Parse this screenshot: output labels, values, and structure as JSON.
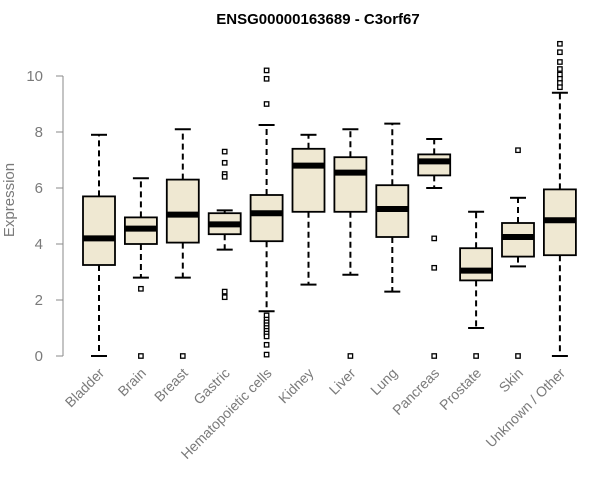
{
  "chart_data": {
    "type": "box",
    "title": "ENSG00000163689 - C3orf67",
    "xlabel": "",
    "ylabel": "Expression",
    "ylim": [
      0,
      11.2
    ],
    "yticks": [
      0,
      2,
      4,
      6,
      8,
      10
    ],
    "grid": false,
    "box_fill": "#efe8d2",
    "categories": [
      "Bladder",
      "Brain",
      "Breast",
      "Gastric",
      "Hematopoietic cells",
      "Kidney",
      "Liver",
      "Lung",
      "Pancreas",
      "Prostate",
      "Skin",
      "Unknown / Other"
    ],
    "boxes": [
      {
        "whisker_low": 0.0,
        "q1": 3.25,
        "median": 4.2,
        "q3": 5.7,
        "whisker_high": 7.9,
        "outliers": []
      },
      {
        "whisker_low": 2.8,
        "q1": 4.0,
        "median": 4.55,
        "q3": 4.95,
        "whisker_high": 6.35,
        "outliers": [
          2.4,
          0.0
        ]
      },
      {
        "whisker_low": 2.8,
        "q1": 4.05,
        "median": 5.05,
        "q3": 6.3,
        "whisker_high": 8.1,
        "outliers": [
          0.0
        ]
      },
      {
        "whisker_low": 3.8,
        "q1": 4.35,
        "median": 4.7,
        "q3": 5.1,
        "whisker_high": 5.2,
        "outliers": [
          7.3,
          6.9,
          6.5,
          6.4,
          2.3,
          2.1
        ]
      },
      {
        "whisker_low": 1.6,
        "q1": 4.1,
        "median": 5.1,
        "q3": 5.75,
        "whisker_high": 8.25,
        "outliers": [
          10.2,
          9.9,
          9.0,
          1.45,
          1.3,
          1.2,
          1.1,
          1.0,
          0.9,
          0.8,
          0.7,
          0.4,
          0.05
        ]
      },
      {
        "whisker_low": 2.55,
        "q1": 5.15,
        "median": 6.8,
        "q3": 7.4,
        "whisker_high": 7.9,
        "outliers": []
      },
      {
        "whisker_low": 2.9,
        "q1": 5.15,
        "median": 6.55,
        "q3": 7.1,
        "whisker_high": 8.1,
        "outliers": [
          0.0
        ]
      },
      {
        "whisker_low": 2.3,
        "q1": 4.25,
        "median": 5.25,
        "q3": 6.1,
        "whisker_high": 8.3,
        "outliers": []
      },
      {
        "whisker_low": 6.0,
        "q1": 6.45,
        "median": 6.95,
        "q3": 7.2,
        "whisker_high": 7.75,
        "outliers": [
          4.2,
          3.15,
          0.0
        ]
      },
      {
        "whisker_low": 1.0,
        "q1": 2.7,
        "median": 3.05,
        "q3": 3.85,
        "whisker_high": 5.15,
        "outliers": [
          0.0
        ]
      },
      {
        "whisker_low": 3.2,
        "q1": 3.55,
        "median": 4.25,
        "q3": 4.75,
        "whisker_high": 5.65,
        "outliers": [
          7.35,
          0.0
        ]
      },
      {
        "whisker_low": 0.0,
        "q1": 3.6,
        "median": 4.85,
        "q3": 5.95,
        "whisker_high": 9.4,
        "outliers": [
          11.15,
          10.85,
          10.5,
          10.25,
          10.05,
          9.9,
          9.75,
          9.6
        ]
      }
    ]
  }
}
